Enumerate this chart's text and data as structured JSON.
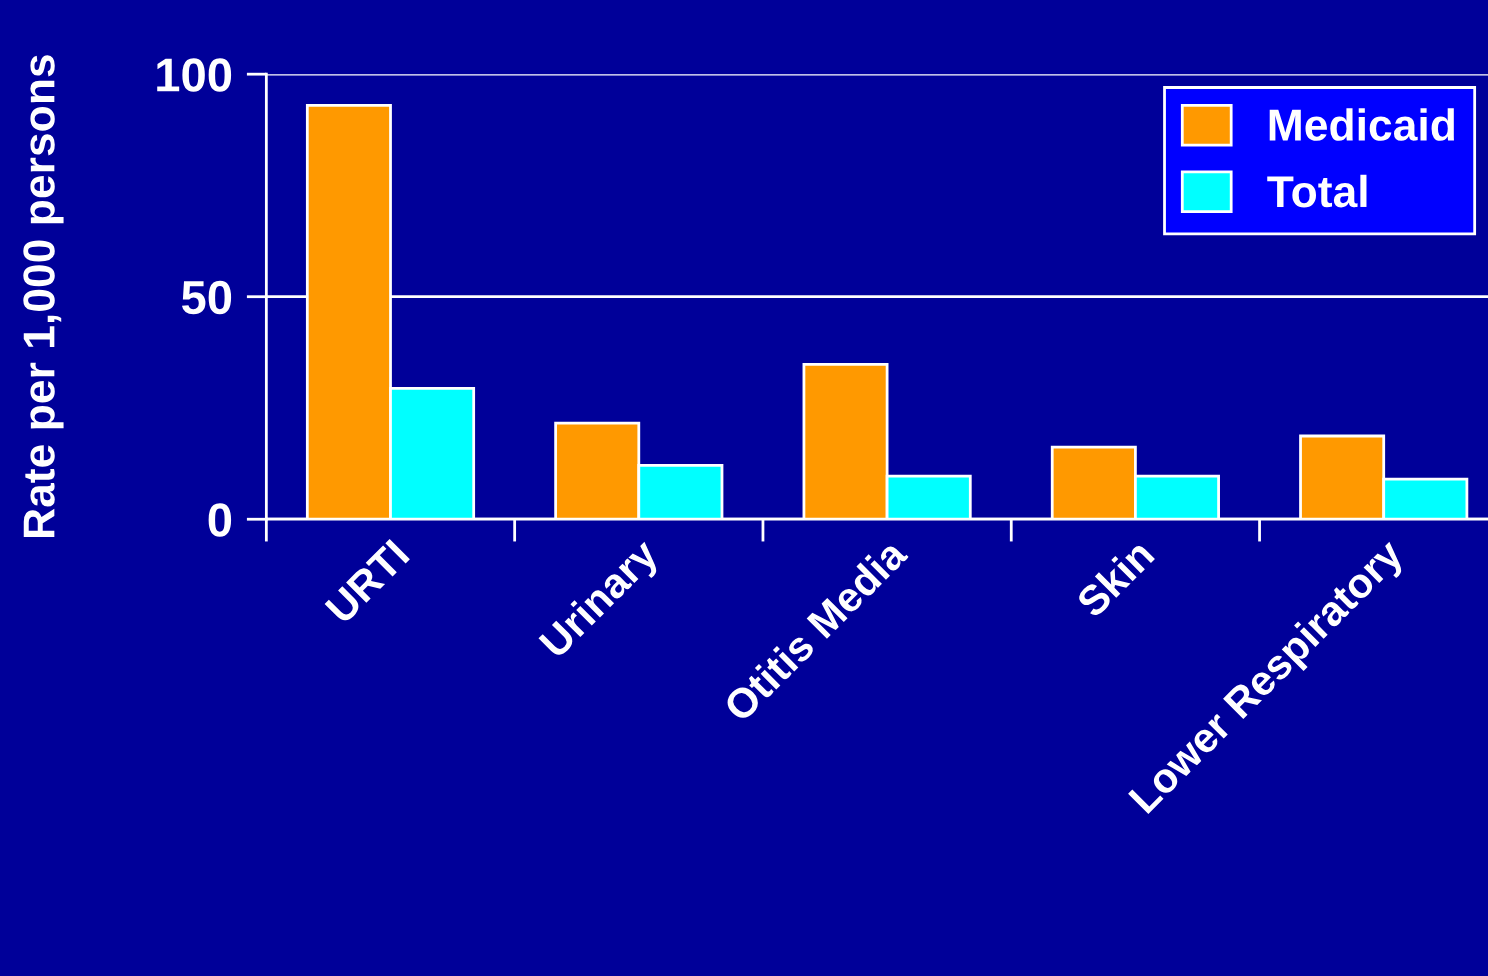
{
  "chart_data": {
    "type": "bar",
    "ylabel": "Rate per 1,000 persons",
    "categories": [
      "URTI",
      "Urinary",
      "Otitis Media",
      "Skin",
      "Lower Respiratory"
    ],
    "series": [
      {
        "name": "Medicaid",
        "color": "#ff9900",
        "values": [
          93,
          21.6,
          34.8,
          16.2,
          18.7
        ]
      },
      {
        "name": "Total",
        "color": "#00ffff",
        "values": [
          29.4,
          12.1,
          9.7,
          9.7,
          9.0
        ]
      }
    ],
    "ylim": [
      0,
      100
    ],
    "yticks": [
      0,
      50,
      100
    ],
    "grid": "y",
    "legend": "top right"
  }
}
